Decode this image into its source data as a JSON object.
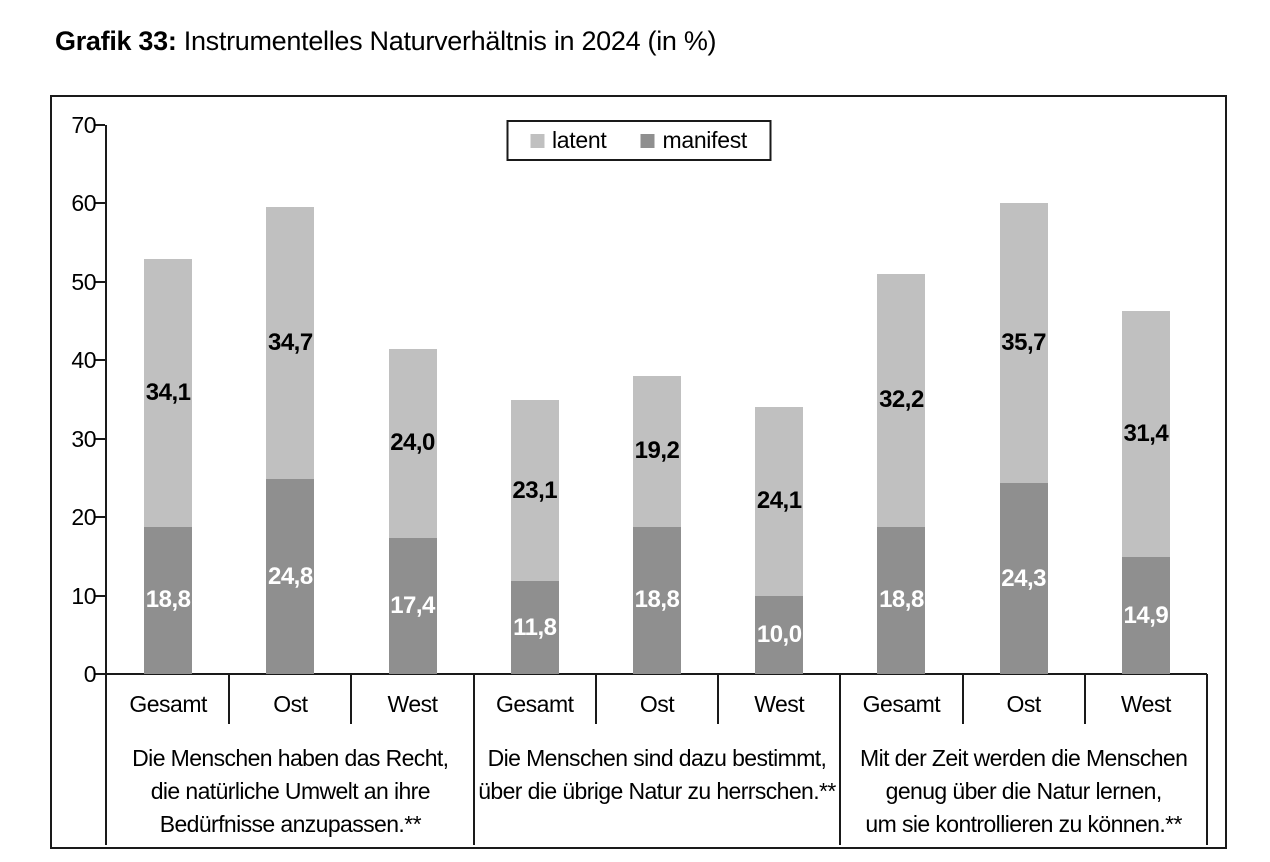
{
  "title": {
    "prefix": "Grafik 33:",
    "text": " Instrumentelles Naturverhältnis in 2024 (in %)"
  },
  "colors": {
    "latent": "#c0c0c0",
    "manifest": "#8f8f8f",
    "axis": "#1a1a1a",
    "latent_label_text": "#000000",
    "manifest_label_text": "#ffffff"
  },
  "chart_data": {
    "type": "bar",
    "stacked": true,
    "title": "Grafik 33: Instrumentelles Naturverhältnis in 2024 (in %)",
    "ylim": [
      0,
      70
    ],
    "yticks": [
      0,
      10,
      20,
      30,
      40,
      50,
      60,
      70
    ],
    "grid": false,
    "legend_position": "top-center",
    "legend": [
      {
        "name": "latent",
        "color": "#c0c0c0"
      },
      {
        "name": "manifest",
        "color": "#8f8f8f"
      }
    ],
    "value_decimal_separator": ",",
    "groups": [
      {
        "question_lines": [
          "Die Menschen haben das Recht,",
          "die natürliche Umwelt an ihre",
          "Bedürfnisse anzupassen.**"
        ],
        "bars": [
          {
            "category": "Gesamt",
            "manifest": 18.8,
            "latent": 34.1
          },
          {
            "category": "Ost",
            "manifest": 24.8,
            "latent": 34.7
          },
          {
            "category": "West",
            "manifest": 17.4,
            "latent": 24.0
          }
        ]
      },
      {
        "question_lines": [
          "Die Menschen sind dazu bestimmt,",
          "über die übrige Natur zu herrschen.**"
        ],
        "bars": [
          {
            "category": "Gesamt",
            "manifest": 11.8,
            "latent": 23.1
          },
          {
            "category": "Ost",
            "manifest": 18.8,
            "latent": 19.2
          },
          {
            "category": "West",
            "manifest": 10.0,
            "latent": 24.1
          }
        ]
      },
      {
        "question_lines": [
          "Mit der Zeit werden die Menschen",
          "genug über die Natur lernen,",
          "um sie kontrollieren zu können.**"
        ],
        "bars": [
          {
            "category": "Gesamt",
            "manifest": 18.8,
            "latent": 32.2
          },
          {
            "category": "Ost",
            "manifest": 24.3,
            "latent": 35.7
          },
          {
            "category": "West",
            "manifest": 14.9,
            "latent": 31.4
          }
        ]
      }
    ]
  }
}
